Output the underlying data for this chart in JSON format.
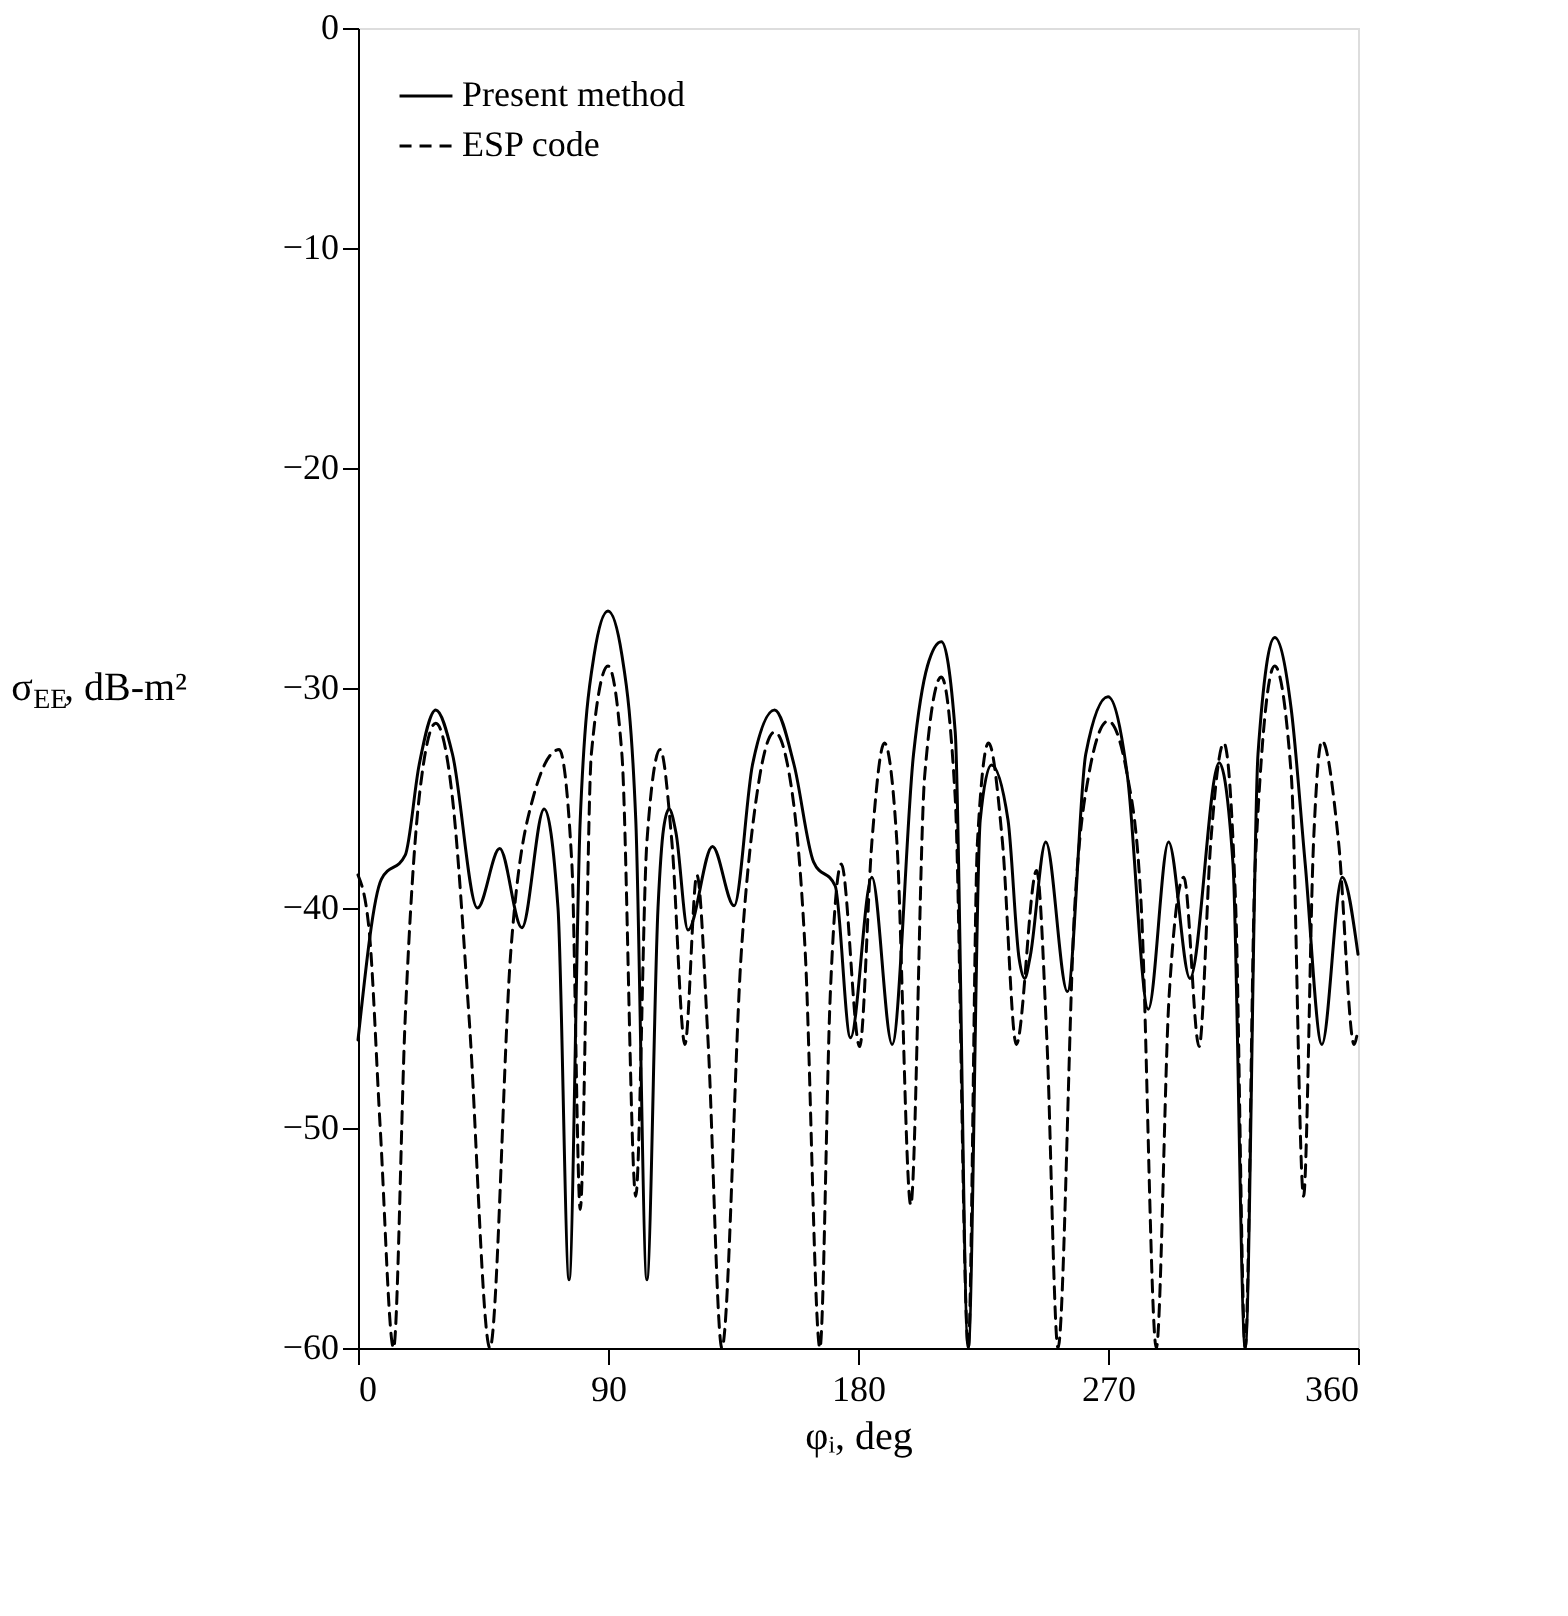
{
  "chart_data": {
    "type": "line",
    "xlabel": "φᵢ, deg",
    "ylabel": "σ$_{EE}$, dB-m²",
    "xlim": [
      0,
      360
    ],
    "xticks": [
      0,
      90,
      180,
      270,
      360
    ],
    "ylim": [
      -60,
      0
    ],
    "yticks": [
      -60,
      -50,
      -40,
      -30,
      -20,
      -10,
      0
    ],
    "grid": false,
    "legend": "top left",
    "marker": "none",
    "series": [
      {
        "name": "Present method",
        "color": "#000000",
        "line_style": "solid",
        "x": [
          0,
          8.4,
          17,
          22,
          28,
          34,
          43,
          51,
          59,
          67,
          72,
          76,
          80,
          85,
          90,
          95,
          100,
          104,
          108,
          110,
          112,
          114.5,
          118.8,
          127.6,
          135.4,
          142,
          150,
          157,
          164,
          171.8,
          177.3,
          185,
          192.3,
          200,
          205,
          210,
          215,
          219.7,
          224,
          228,
          234,
          238,
          240,
          242,
          247.6,
          255.4,
          262,
          270,
          277,
          284.5,
          291.8,
          299.5,
          310,
          315,
          319.4,
          324,
          330,
          336,
          341,
          347,
          354.3,
          360
        ],
        "values": [
          -46,
          -38.7,
          -37.6,
          -33.5,
          -31,
          -33,
          -40,
          -37.3,
          -40.9,
          -35.5,
          -40,
          -56.9,
          -36,
          -28.5,
          -26.5,
          -28.5,
          -36,
          -56.9,
          -40,
          -36.4,
          -35.5,
          -36.6,
          -41,
          -37.2,
          -39.9,
          -33.5,
          -31,
          -33.5,
          -37.9,
          -39,
          -45.9,
          -38.6,
          -46.2,
          -33,
          -29,
          -27.9,
          -32,
          -60,
          -36,
          -33.5,
          -36,
          -42.3,
          -43.2,
          -42.2,
          -37,
          -43.8,
          -33,
          -30.4,
          -34,
          -44.6,
          -37,
          -43.2,
          -33.4,
          -38,
          -60,
          -33,
          -27.7,
          -31,
          -38,
          -46.2,
          -38.6,
          -42.1
        ]
      },
      {
        "name": "ESP code",
        "color": "#000000",
        "line_style": "dashed",
        "x": [
          0,
          4,
          8,
          12.8,
          17,
          22,
          28,
          34,
          40,
          47.5,
          55,
          63,
          72.4,
          77,
          80,
          84,
          90,
          95,
          100,
          104,
          108.8,
          113,
          117.7,
          122,
          126,
          131,
          138,
          144,
          150,
          156,
          161,
          166.3,
          170,
          174,
          180.6,
          185,
          189.5,
          194,
          199,
          204,
          210,
          215,
          219.7,
          223,
          227,
          232,
          237,
          244.3,
          248,
          252,
          258,
          263,
          270,
          277,
          282,
          287.4,
          292,
          297.3,
          302.8,
          307,
          311.7,
          316,
          319.4,
          323,
          330,
          336,
          340.4,
          344,
          347,
          353,
          358.6,
          360
        ],
        "values": [
          -38.5,
          -41,
          -50,
          -60,
          -45,
          -35,
          -31.6,
          -35,
          -45,
          -60,
          -42,
          -35,
          -32.8,
          -38,
          -53.7,
          -33,
          -29,
          -33,
          -53.1,
          -37,
          -32.8,
          -37,
          -46.2,
          -38.5,
          -46,
          -60,
          -42,
          -34.5,
          -32,
          -34.5,
          -42,
          -60,
          -44,
          -38,
          -46.3,
          -37,
          -32.5,
          -37,
          -53.5,
          -34,
          -29.5,
          -35,
          -60,
          -37,
          -32.5,
          -37,
          -46.2,
          -38.3,
          -46,
          -60,
          -40,
          -34,
          -31.5,
          -34,
          -40,
          -60,
          -44,
          -38.6,
          -46.3,
          -37,
          -32.5,
          -40,
          -60,
          -38,
          -29,
          -34,
          -53.1,
          -37,
          -32.4,
          -37,
          -46.2,
          -45.5
        ]
      }
    ]
  }
}
